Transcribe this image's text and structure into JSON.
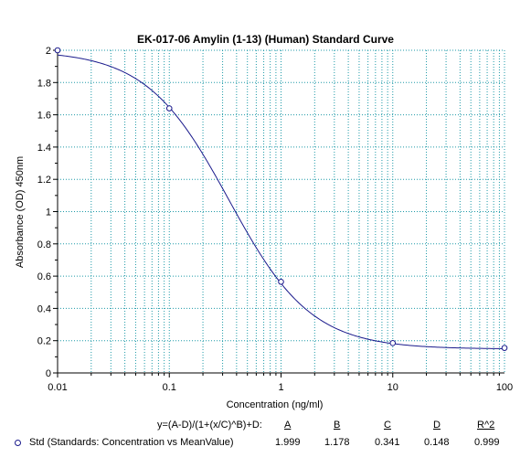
{
  "chart_data": {
    "type": "scatter",
    "title": "EK-017-06 Amylin (1-13) (Human) Standard Curve",
    "xlabel": "Concentration (ng/ml)",
    "ylabel": "Absorbance (OD) 450nm",
    "xscale": "log",
    "xlim": [
      0.01,
      100
    ],
    "ylim": [
      0,
      2
    ],
    "x_ticks": [
      "0.01",
      "0.1",
      "1",
      "10",
      "100"
    ],
    "y_ticks": [
      "0",
      "0.2",
      "0.4",
      "0.6",
      "0.8",
      "1",
      "1.2",
      "1.4",
      "1.6",
      "1.8",
      "2"
    ],
    "grid": true,
    "series": [
      {
        "name": "Std (Standards: Concentration vs MeanValue)",
        "points": [
          {
            "x": 0.01,
            "y": 2.0
          },
          {
            "x": 0.1,
            "y": 1.64
          },
          {
            "x": 1,
            "y": 0.565
          },
          {
            "x": 10,
            "y": 0.185
          },
          {
            "x": 100,
            "y": 0.155
          }
        ]
      }
    ],
    "fit": {
      "equation": "y=(A-D)/(1+(x/C)^B)+D:",
      "A": 1.999,
      "B": 1.178,
      "C": 0.341,
      "D": 0.148,
      "R2": 0.999
    },
    "colors": {
      "curve": "#1a1a8c",
      "marker": "#1a1a8c",
      "grid": "#1e9aa8",
      "axis": "#000000"
    }
  },
  "legend": {
    "equation": "y=(A-D)/(1+(x/C)^B)+D:",
    "headers": [
      "A",
      "B",
      "C",
      "D",
      "R^2"
    ],
    "series_label": "Std (Standards: Concentration vs MeanValue)",
    "values": [
      "1.999",
      "1.178",
      "0.341",
      "0.148",
      "0.999"
    ]
  }
}
